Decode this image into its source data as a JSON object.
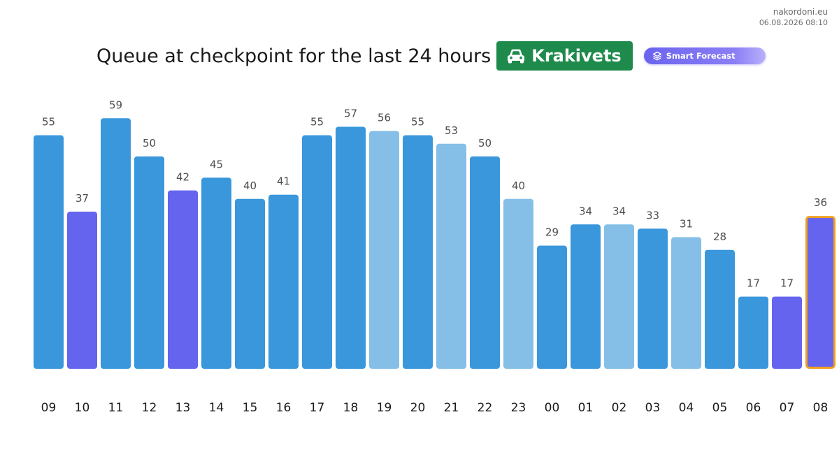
{
  "site": {
    "domain": "nakordoni.eu",
    "datetime": "06.08.2026 08:10"
  },
  "header": {
    "title": "Queue at checkpoint for the last 24 hours",
    "checkpoint": "Krakivets",
    "checkpoint_icon": "car-icon",
    "forecast_label": "Smart Forecast",
    "forecast_icon": "layers-icon"
  },
  "colors": {
    "regular": "#3a97db",
    "light": "#85bfe7",
    "purple": "#6564ef",
    "highlight_border": "#f0a020",
    "badge": "#1e8a4c"
  },
  "chart_data": {
    "type": "bar",
    "title": "",
    "xlabel": "",
    "ylabel": "",
    "ylim": [
      0,
      60
    ],
    "grid": false,
    "categories": [
      "09",
      "10",
      "11",
      "12",
      "13",
      "14",
      "15",
      "16",
      "17",
      "18",
      "19",
      "20",
      "21",
      "22",
      "23",
      "00",
      "01",
      "02",
      "03",
      "04",
      "05",
      "06",
      "07",
      "08"
    ],
    "values": [
      55,
      37,
      59,
      50,
      42,
      45,
      40,
      41,
      55,
      57,
      56,
      55,
      53,
      50,
      40,
      29,
      34,
      34,
      33,
      31,
      28,
      17,
      17,
      36
    ],
    "bar_styles": [
      "regular",
      "purple",
      "regular",
      "regular",
      "purple",
      "regular",
      "regular",
      "regular",
      "regular",
      "regular",
      "light",
      "regular",
      "light",
      "regular",
      "light",
      "regular",
      "regular",
      "light",
      "regular",
      "light",
      "regular",
      "regular",
      "purple",
      "purple"
    ],
    "highlighted": "08"
  }
}
